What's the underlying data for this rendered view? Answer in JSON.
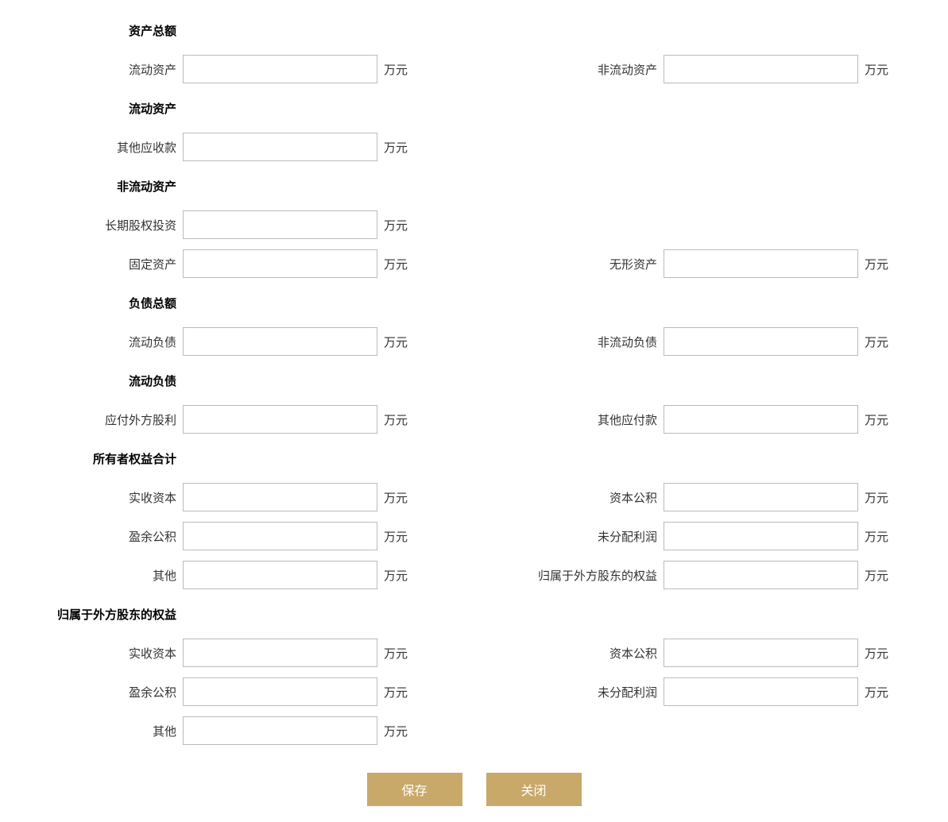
{
  "unit": "万元",
  "sections": {
    "total_assets": {
      "header": "资产总额"
    },
    "current_assets_section": {
      "header": "流动资产"
    },
    "noncurrent_assets_section": {
      "header": "非流动资产"
    },
    "total_liabilities": {
      "header": "负债总额"
    },
    "current_liabilities_section": {
      "header": "流动负债"
    },
    "owners_equity": {
      "header": "所有者权益合计"
    },
    "foreign_equity_section": {
      "header": "归属于外方股东的权益"
    }
  },
  "fields": {
    "current_assets": {
      "label": "流动资产",
      "value": ""
    },
    "noncurrent_assets": {
      "label": "非流动资产",
      "value": ""
    },
    "other_receivables": {
      "label": "其他应收款",
      "value": ""
    },
    "longterm_equity_investment": {
      "label": "长期股权投资",
      "value": ""
    },
    "fixed_assets": {
      "label": "固定资产",
      "value": ""
    },
    "intangible_assets": {
      "label": "无形资产",
      "value": ""
    },
    "current_liabilities": {
      "label": "流动负债",
      "value": ""
    },
    "noncurrent_liabilities": {
      "label": "非流动负债",
      "value": ""
    },
    "foreign_dividend_payable": {
      "label": "应付外方股利",
      "value": ""
    },
    "other_payables": {
      "label": "其他应付款",
      "value": ""
    },
    "paid_in_capital_1": {
      "label": "实收资本",
      "value": ""
    },
    "capital_reserve_1": {
      "label": "资本公积",
      "value": ""
    },
    "surplus_reserve_1": {
      "label": "盈余公积",
      "value": ""
    },
    "undistributed_profit_1": {
      "label": "未分配利润",
      "value": ""
    },
    "other_1": {
      "label": "其他",
      "value": ""
    },
    "foreign_shareholder_equity": {
      "label": "归属于外方股东的权益",
      "value": ""
    },
    "paid_in_capital_2": {
      "label": "实收资本",
      "value": ""
    },
    "capital_reserve_2": {
      "label": "资本公积",
      "value": ""
    },
    "surplus_reserve_2": {
      "label": "盈余公积",
      "value": ""
    },
    "undistributed_profit_2": {
      "label": "未分配利润",
      "value": ""
    },
    "other_2": {
      "label": "其他",
      "value": ""
    }
  },
  "buttons": {
    "save": "保存",
    "close": "关闭"
  },
  "styling": {
    "input_border_color": "#bbbbbb",
    "button_bg_color": "#c8a96a",
    "button_text_color": "#ffffff",
    "text_color": "#333333",
    "page_bg": "#ffffff",
    "font_size": 15,
    "input_width": 245,
    "input_height": 36,
    "button_width": 120,
    "button_height": 42
  }
}
